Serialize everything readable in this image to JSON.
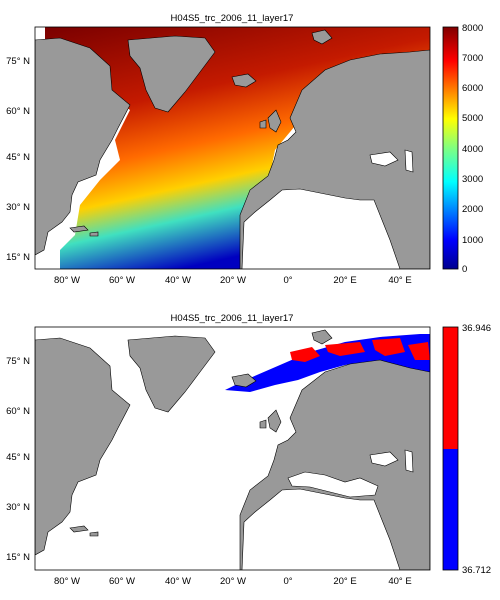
{
  "panels": [
    {
      "title": "H04S5_trc_2006_11_layer17",
      "lat_ticks": [
        "75° N",
        "60° N",
        "45° N",
        "30° N",
        "15° N"
      ],
      "lon_ticks": [
        "80° W",
        "60° W",
        "40° W",
        "20° W",
        "0°",
        "20° E",
        "40° E"
      ],
      "colorbar": {
        "type": "continuous",
        "colormap": "jet",
        "range": [
          0,
          8000
        ],
        "ticks": [
          "8000",
          "7000",
          "6000",
          "5000",
          "4000",
          "3000",
          "2000",
          "1000",
          "0"
        ]
      }
    },
    {
      "title": "H04S5_trc_2006_11_layer17",
      "lat_ticks": [
        "75° N",
        "60° N",
        "45° N",
        "30° N",
        "15° N"
      ],
      "lon_ticks": [
        "80° W",
        "60° W",
        "40° W",
        "20° W",
        "0°",
        "20° E",
        "40° E"
      ],
      "colorbar": {
        "type": "two-class",
        "colors": [
          "#ff0000",
          "#0000ff"
        ],
        "ticks": [
          "36.946",
          "36.712"
        ]
      }
    }
  ],
  "colors": {
    "land": "#999999",
    "ocean_nodata": "#ffffff",
    "frame": "#000000"
  }
}
